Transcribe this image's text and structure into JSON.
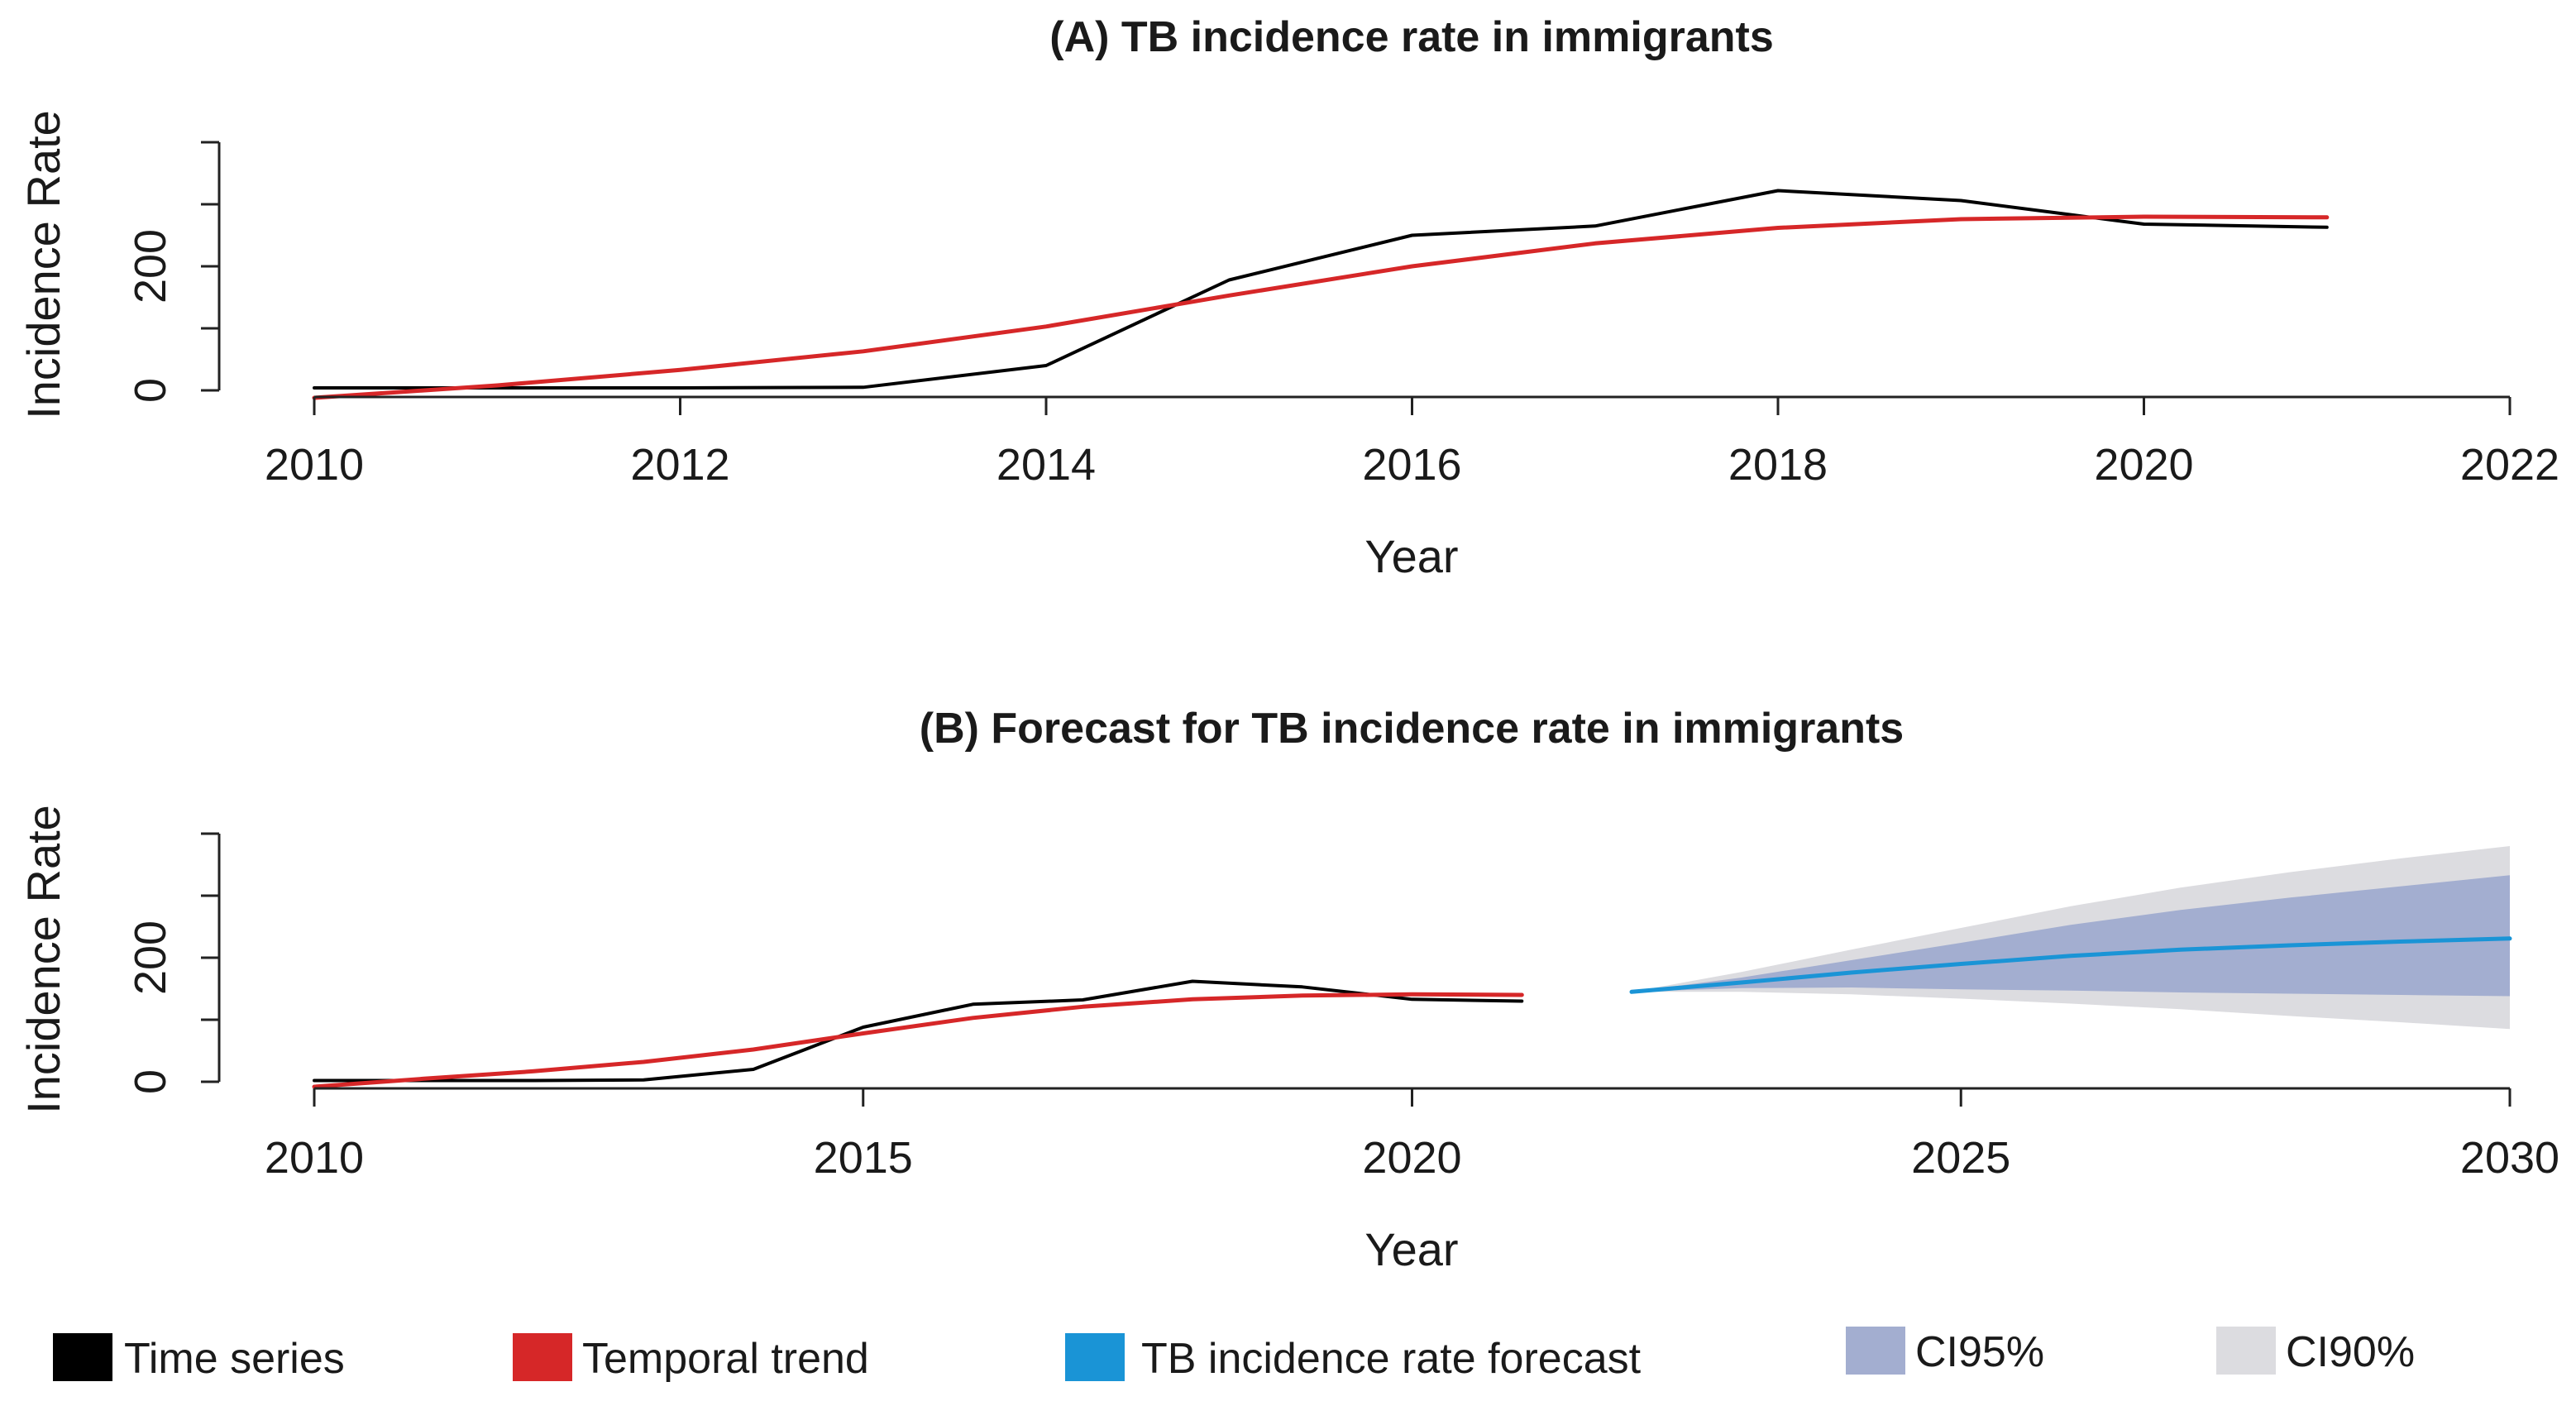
{
  "chart_data": [
    {
      "type": "line",
      "title": "(A) TB incidence rate in immigrants",
      "xlabel": "Year",
      "ylabel": "Incidence Rate",
      "xlim": [
        2010,
        2022
      ],
      "ylim": [
        0,
        400
      ],
      "x_ticks": [
        2010,
        2012,
        2014,
        2016,
        2018,
        2020,
        2022
      ],
      "x_tick_labels": [
        "2010",
        "2012",
        "2014",
        "2016",
        "2018",
        "2020",
        "2022"
      ],
      "y_ticks": [
        0,
        100,
        200,
        300,
        400
      ],
      "y_tick_labels": [
        "0",
        "",
        "200",
        "",
        ""
      ],
      "series": [
        {
          "name": "Time series",
          "x": [
            2010,
            2011,
            2012,
            2013,
            2014,
            2015,
            2016,
            2017,
            2018,
            2019,
            2020,
            2021
          ],
          "values": [
            4,
            4,
            4,
            5,
            40,
            178,
            250,
            265,
            322,
            306,
            268,
            263
          ]
        },
        {
          "name": "Temporal trend",
          "x": [
            2010,
            2011,
            2012,
            2013,
            2014,
            2015,
            2016,
            2017,
            2018,
            2019,
            2020,
            2021
          ],
          "values": [
            -12,
            8,
            33,
            63,
            103,
            153,
            200,
            237,
            262,
            276,
            280,
            279
          ]
        }
      ]
    },
    {
      "type": "line",
      "title": "(B) Forecast for TB incidence rate in immigrants",
      "xlabel": "Year",
      "ylabel": "Incidence Rate",
      "xlim": [
        2010,
        2030
      ],
      "ylim": [
        0,
        400
      ],
      "x_ticks": [
        2010,
        2015,
        2020,
        2025,
        2030
      ],
      "x_tick_labels": [
        "2010",
        "2015",
        "2020",
        "2025",
        "2030"
      ],
      "y_ticks": [
        0,
        100,
        200,
        300,
        400
      ],
      "y_tick_labels": [
        "0",
        "",
        "200",
        "",
        ""
      ],
      "series": [
        {
          "name": "Time series",
          "x": [
            2010,
            2011,
            2012,
            2013,
            2014,
            2015,
            2016,
            2017,
            2018,
            2019,
            2020,
            2021
          ],
          "values": [
            2,
            2,
            2,
            3,
            20,
            88,
            125,
            132,
            162,
            153,
            133,
            130
          ]
        },
        {
          "name": "Temporal trend",
          "x": [
            2010,
            2011,
            2012,
            2013,
            2014,
            2015,
            2016,
            2017,
            2018,
            2019,
            2020,
            2021
          ],
          "values": [
            -8,
            5,
            17,
            32,
            52,
            78,
            103,
            121,
            133,
            139,
            141,
            140
          ]
        },
        {
          "name": "TB incidence rate forecast",
          "x": [
            2022,
            2023,
            2024,
            2025,
            2026,
            2027,
            2028,
            2029,
            2030
          ],
          "values": [
            145,
            160,
            176,
            190,
            203,
            213,
            220,
            226,
            231
          ]
        }
      ],
      "bands": [
        {
          "name": "CI90%",
          "x": [
            2022,
            2023,
            2024,
            2025,
            2026,
            2027,
            2028,
            2029,
            2030
          ],
          "lower": [
            145,
            145,
            141,
            134,
            126,
            117,
            106,
            96,
            85
          ],
          "upper": [
            145,
            177,
            213,
            248,
            283,
            313,
            338,
            360,
            380
          ]
        },
        {
          "name": "CI95%",
          "x": [
            2022,
            2023,
            2024,
            2025,
            2026,
            2027,
            2028,
            2029,
            2030
          ],
          "lower": [
            145,
            151,
            152,
            149,
            147,
            144,
            142,
            140,
            138
          ],
          "upper": [
            145,
            168,
            196,
            224,
            253,
            277,
            297,
            315,
            333
          ]
        }
      ]
    }
  ],
  "legend": [
    {
      "label": "Time series",
      "color": "#000000"
    },
    {
      "label": "Temporal trend",
      "color": "#d62728"
    },
    {
      "label": "TB incidence rate forecast",
      "color": "#1a94d6"
    },
    {
      "label": "CI95%",
      "color": "#a3aed0"
    },
    {
      "label": "CI90%",
      "color": "#dcdce0"
    }
  ],
  "colors": {
    "time_series": "#000000",
    "trend": "#d62728",
    "forecast": "#1a94d6",
    "ci95": "#a3aed0",
    "ci90": "#dcdce0"
  }
}
